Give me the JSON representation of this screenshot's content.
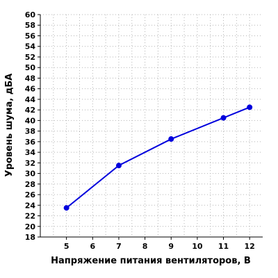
{
  "chart_data": {
    "type": "line",
    "title": "",
    "xlabel": "Напряжение питания вентиляторов, В",
    "ylabel": "Уровень шума, дБА",
    "xlim": [
      4,
      12.5
    ],
    "ylim": [
      18,
      60
    ],
    "x_ticks": [
      5,
      6,
      7,
      8,
      9,
      10,
      11,
      12
    ],
    "y_ticks": [
      18,
      20,
      22,
      24,
      26,
      28,
      30,
      32,
      34,
      36,
      38,
      40,
      42,
      44,
      46,
      48,
      50,
      52,
      54,
      56,
      58,
      60
    ],
    "grid": true,
    "legend": "none",
    "series": [
      {
        "color": "#0000dd",
        "x": [
          5,
          7,
          9,
          11,
          12
        ],
        "y": [
          23.5,
          31.5,
          36.5,
          40.5,
          42.5
        ]
      }
    ]
  }
}
